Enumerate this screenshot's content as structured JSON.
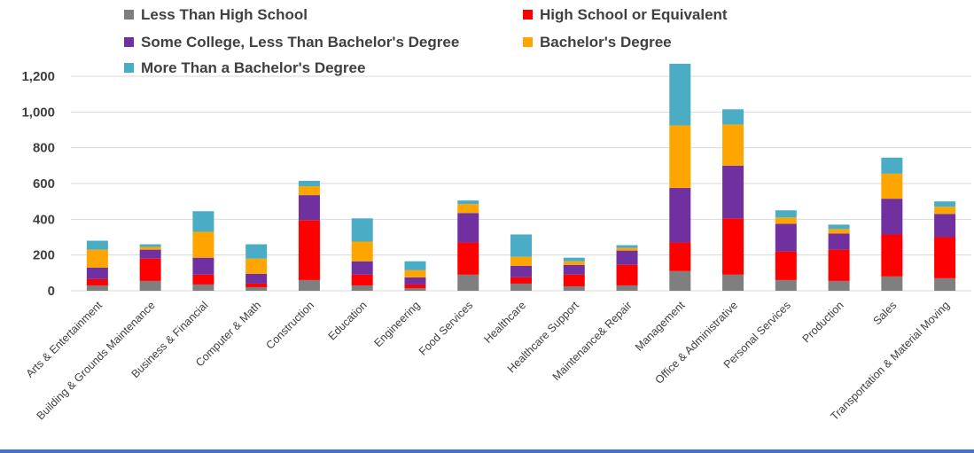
{
  "chart_data": {
    "type": "bar",
    "stacked": true,
    "categories": [
      "Arts & Entertainment",
      "Building & Grounds Maintenance",
      "Business & Financial",
      "Computer & Math",
      "Construction",
      "Education",
      "Engineering",
      "Food Services",
      "Healthcare",
      "Healthcare Support",
      "Maintenance& Repair",
      "Management",
      "Office & Administrative",
      "Personal Services",
      "Production",
      "Sales",
      "Transportation & Material Moving"
    ],
    "series": [
      {
        "name": "Less Than High School",
        "color": "#7f7f7f",
        "values": [
          30,
          55,
          35,
          20,
          60,
          30,
          15,
          90,
          40,
          25,
          30,
          110,
          90,
          60,
          55,
          80,
          70
        ]
      },
      {
        "name": "High School or Equivalent",
        "color": "#ff0000",
        "values": [
          35,
          125,
          55,
          20,
          335,
          60,
          20,
          180,
          35,
          65,
          115,
          160,
          315,
          160,
          175,
          235,
          230
        ]
      },
      {
        "name": "Some College, Less Than Bachelor's Degree",
        "color": "#7030a0",
        "values": [
          65,
          50,
          95,
          55,
          140,
          75,
          40,
          165,
          65,
          55,
          80,
          305,
          295,
          155,
          90,
          200,
          130
        ]
      },
      {
        "name": "Bachelor's Degree",
        "color": "#ffa500",
        "values": [
          100,
          15,
          145,
          85,
          50,
          110,
          40,
          50,
          50,
          20,
          15,
          350,
          230,
          35,
          25,
          140,
          40
        ]
      },
      {
        "name": "More Than a Bachelor's Degree",
        "color": "#4bacc6",
        "values": [
          50,
          15,
          115,
          80,
          30,
          130,
          50,
          20,
          125,
          20,
          15,
          345,
          85,
          40,
          25,
          90,
          30
        ]
      }
    ],
    "yticks": [
      "0",
      "200",
      "400",
      "600",
      "800",
      "1,000",
      "1,200"
    ],
    "ylim": [
      0,
      1200
    ],
    "grid": true,
    "legend_position": "top"
  }
}
